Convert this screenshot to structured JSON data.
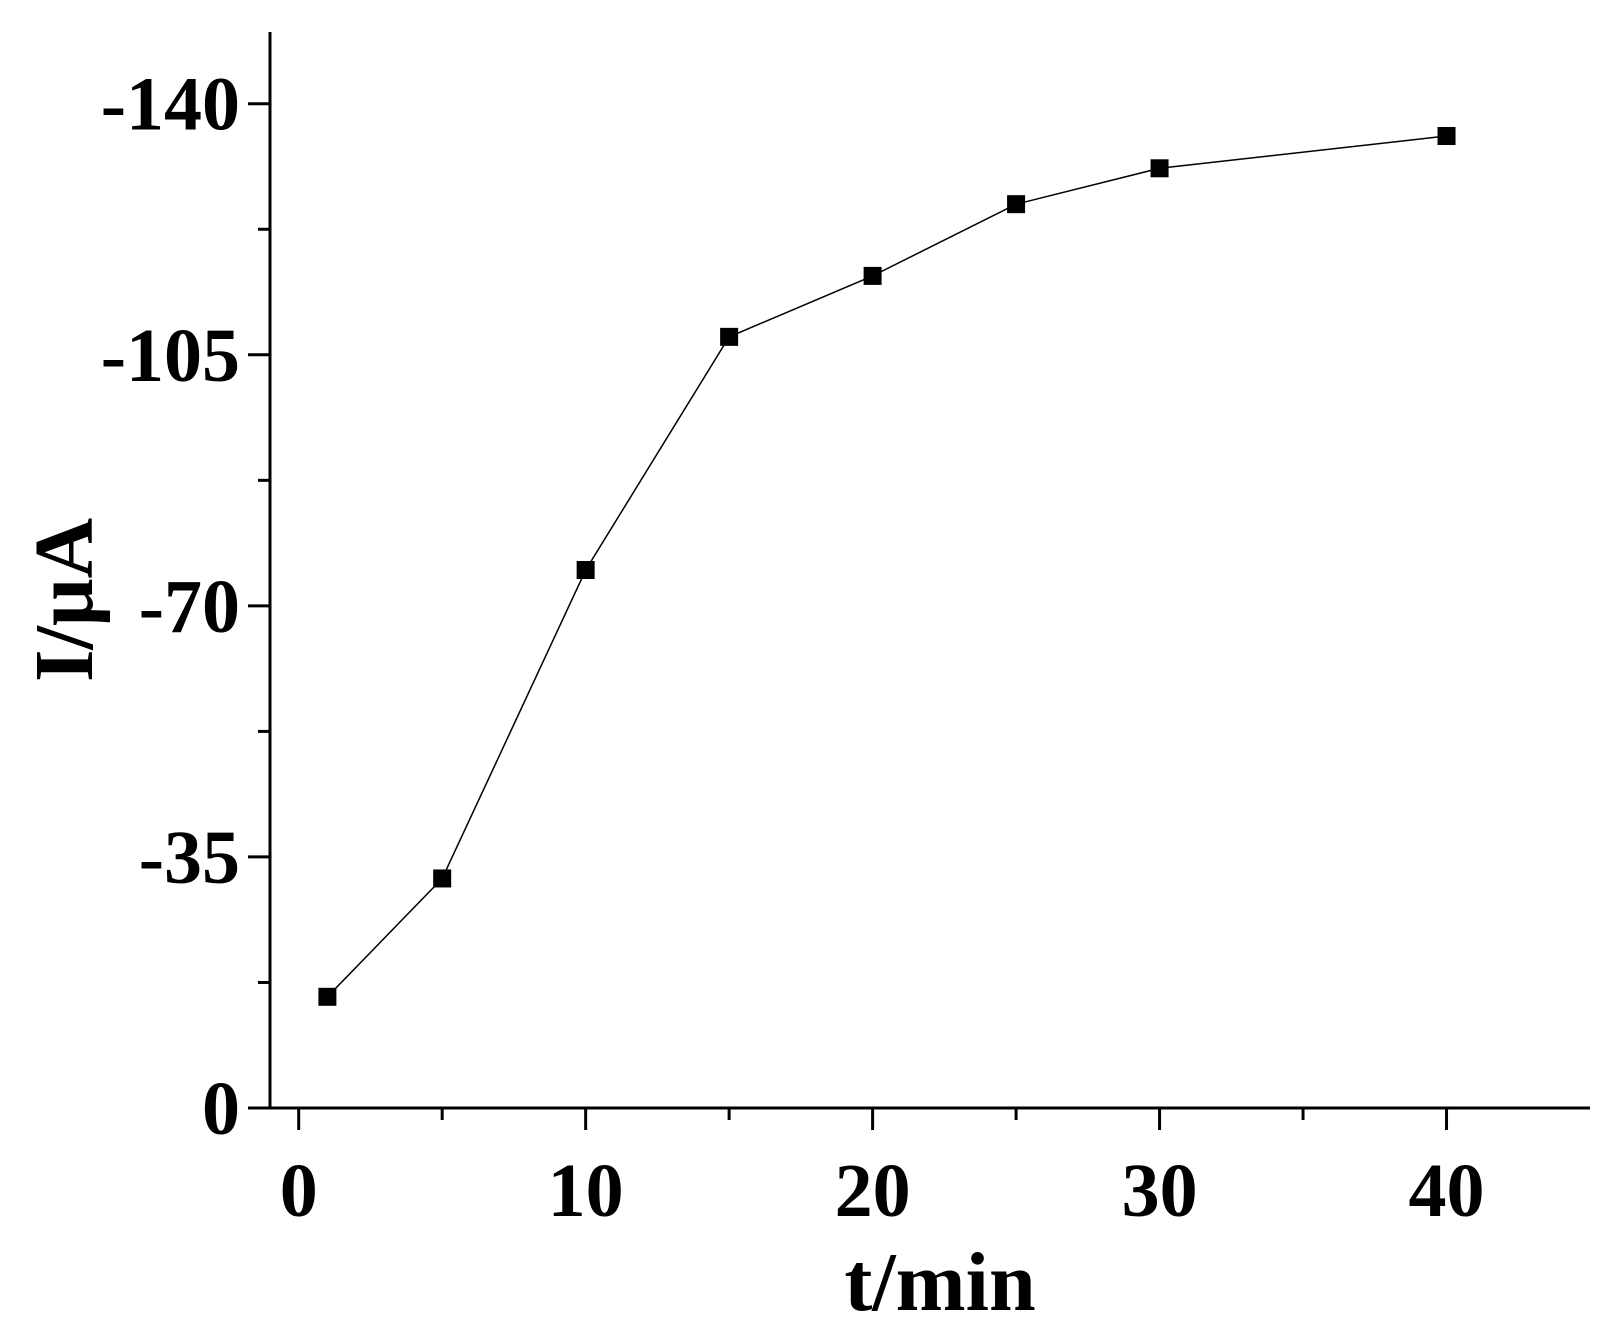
{
  "chart_data": {
    "type": "line",
    "xlabel": "t/min",
    "ylabel": "I/μA",
    "xlim": [
      -1,
      45
    ],
    "ylim": [
      0,
      -150
    ],
    "xticks": [
      0,
      10,
      20,
      30,
      40
    ],
    "xticks_minor": [
      5,
      15,
      25,
      35
    ],
    "yticks": [
      0,
      -35,
      -70,
      -105,
      -140
    ],
    "yticks_minor": [
      -17.5,
      -52.5,
      -87.5,
      -122.5
    ],
    "ytick_labels": [
      "0",
      "-35",
      "-70",
      "-105",
      "-140"
    ],
    "xtick_labels": [
      "0",
      "10",
      "20",
      "30",
      "40"
    ],
    "grid": false,
    "legend": "none",
    "marker": "square",
    "color": "#000000",
    "series": [
      {
        "x": [
          1,
          5,
          10,
          15,
          20,
          25,
          30,
          40
        ],
        "values": [
          -15.5,
          -32,
          -75,
          -107.5,
          -116,
          -126,
          -131,
          -135.5
        ]
      }
    ]
  }
}
